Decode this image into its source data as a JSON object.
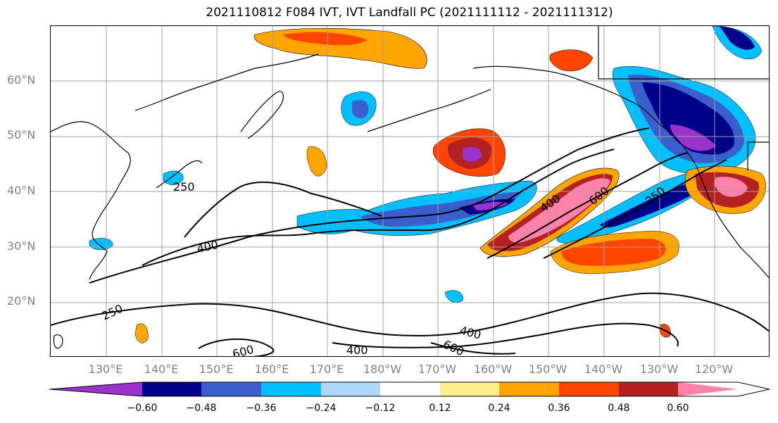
{
  "title": "2021110812 F084 IVT, IVT Landfall PC (2021111112 - 2021111312)",
  "lat_labels": [
    "60°N",
    "50°N",
    "40°N",
    "30°N",
    "20°N"
  ],
  "lon_labels": [
    "130°E",
    "140°E",
    "150°E",
    "160°E",
    "170°E",
    "180°W",
    "170°W",
    "160°W",
    "150°W",
    "140°W",
    "130°W",
    "120°W"
  ],
  "contour_labels": [
    "250",
    "400",
    "250",
    "600",
    "400",
    "400",
    "600",
    "250",
    "400",
    "600"
  ],
  "colorbar": {
    "ticks": [
      "−0.60",
      "−0.48",
      "−0.36",
      "−0.24",
      "−0.12",
      "0.12",
      "0.24",
      "0.36",
      "0.48",
      "0.60"
    ],
    "colors": [
      "#9933cc",
      "#00008b",
      "#3a5fcd",
      "#00bfff",
      "#add8f5",
      "#ffffff",
      "#ffec8b",
      "#ffa500",
      "#ff4500",
      "#b22222",
      "#ff82ab"
    ]
  }
}
